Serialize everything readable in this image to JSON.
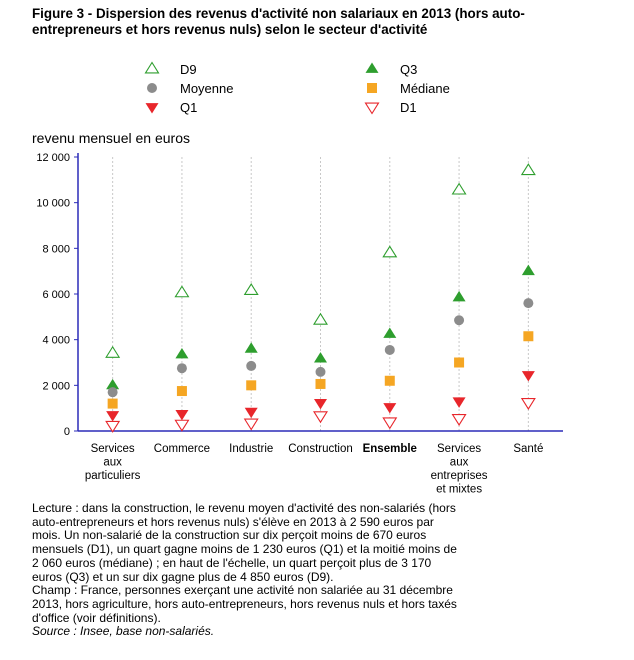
{
  "title": "Figure 3 - Dispersion des revenus d'activité non salariaux en 2013 (hors auto-entrepreneurs et hors revenus nuls) selon le secteur d'activité",
  "chart_data": {
    "type": "scatter",
    "ylabel": "revenu mensuel en euros",
    "ylim": [
      0,
      12000
    ],
    "yticks": [
      0,
      2000,
      4000,
      6000,
      8000,
      10000,
      12000
    ],
    "ytick_labels": [
      "0",
      "2 000",
      "4 000",
      "6 000",
      "8 000",
      "10 000",
      "12 000"
    ],
    "grid": "vertical",
    "legend_position": "top",
    "categories": [
      {
        "label": [
          "Services",
          "aux",
          "particuliers"
        ],
        "bold": false
      },
      {
        "label": [
          "Commerce"
        ],
        "bold": false
      },
      {
        "label": [
          "Industrie"
        ],
        "bold": false
      },
      {
        "label": [
          "Construction"
        ],
        "bold": false
      },
      {
        "label": [
          "Ensemble"
        ],
        "bold": true
      },
      {
        "label": [
          "Services",
          "aux",
          "entreprises",
          "et mixtes"
        ],
        "bold": false
      },
      {
        "label": [
          "Santé"
        ],
        "bold": false
      }
    ],
    "series": [
      {
        "name": "D9",
        "marker": "triangle-up-open",
        "color": "#2e9e2e",
        "values": [
          3400,
          6050,
          6150,
          4850,
          7800,
          10550,
          11400
        ]
      },
      {
        "name": "Q3",
        "marker": "triangle-up-filled",
        "color": "#2e9e2e",
        "values": [
          2000,
          3350,
          3600,
          3170,
          4250,
          5850,
          7000
        ]
      },
      {
        "name": "Moyenne",
        "marker": "circle",
        "color": "#8c8c8c",
        "values": [
          1700,
          2750,
          2850,
          2590,
          3550,
          4850,
          5600
        ]
      },
      {
        "name": "Médiane",
        "marker": "square",
        "color": "#f5a623",
        "values": [
          1200,
          1750,
          2000,
          2060,
          2200,
          3000,
          4150
        ]
      },
      {
        "name": "Q1",
        "marker": "triangle-down-filled",
        "color": "#e8262b",
        "values": [
          700,
          750,
          850,
          1230,
          1050,
          1300,
          2450
        ]
      },
      {
        "name": "D1",
        "marker": "triangle-down-open",
        "color": "#e8262b",
        "values": [
          250,
          300,
          350,
          670,
          400,
          550,
          1250
        ]
      }
    ]
  },
  "notes": {
    "lecture": "Lecture : dans la construction, le revenu moyen d'activité des non-salariés (hors auto-entrepreneurs et hors revenus nuls) s'élève en 2013 à 2 590 euros par mois. Un non-salarié de la construction sur dix perçoit moins de 670 euros mensuels (D1), un quart gagne moins de 1 230 euros (Q1) et la moitié moins de 2 060 euros (médiane) ; en haut de l'échelle, un quart perçoit plus de 3 170 euros (Q3) et un sur dix gagne plus de 4 850 euros (D9).",
    "champ": "Champ : France, personnes exerçant une activité non salariée au 31 décembre 2013, hors agriculture, hors auto-entrepreneurs, hors revenus nuls et hors taxés d'office (voir définitions).",
    "source": "Source : Insee, base non-salariés."
  }
}
